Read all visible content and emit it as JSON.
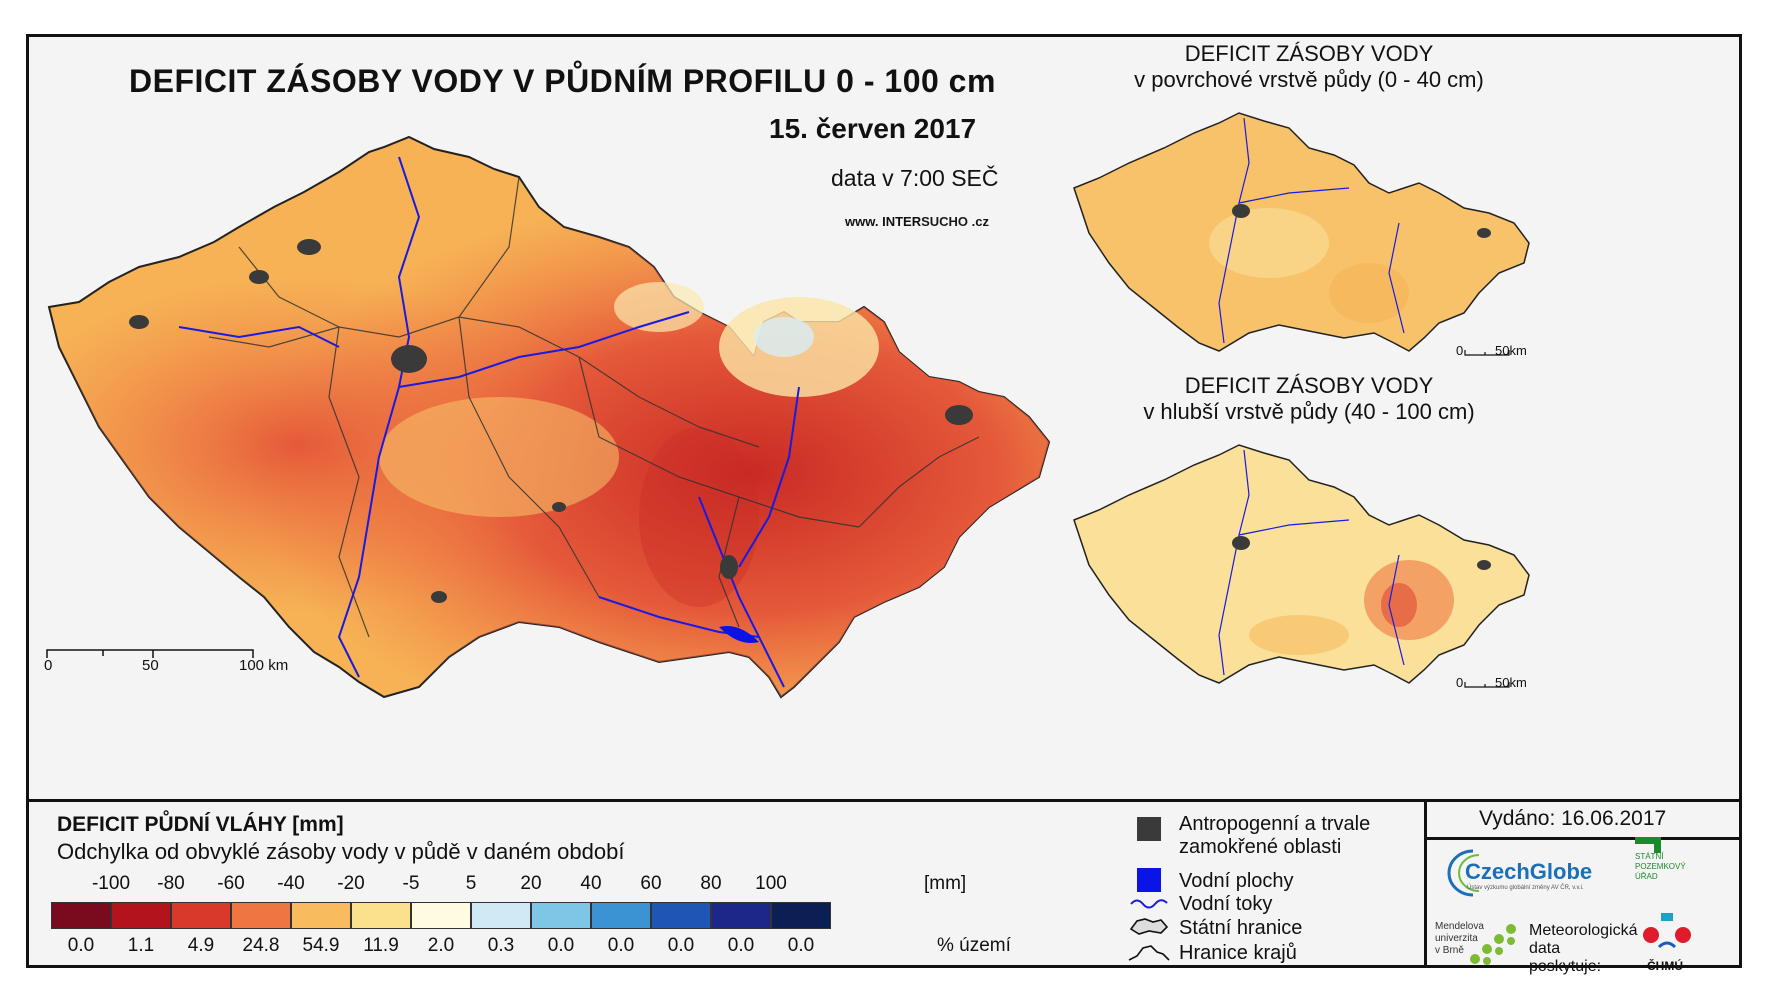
{
  "title": "DEFICIT ZÁSOBY VODY V PŮDNÍM PROFILU 0 - 100 cm",
  "date": "15. červen 2017",
  "data_time": "data v 7:00 SEČ",
  "website": {
    "prefix": "www. INTER",
    "highlight": "SUCHO",
    "suffix": " .cz"
  },
  "main_scale": {
    "ticks": [
      "0",
      "50",
      "100 km"
    ]
  },
  "inset_top": {
    "title_line1": "DEFICIT ZÁSOBY VODY",
    "title_line2": "v povrchové vrstvě půdy (0 - 40 cm)",
    "scale": [
      "0",
      "50km"
    ]
  },
  "inset_bottom": {
    "title_line1": "DEFICIT ZÁSOBY VODY",
    "title_line2": "v hlubší vrstvě půdy (40 - 100 cm)",
    "scale": [
      "0",
      "50km"
    ]
  },
  "legend": {
    "title": "DEFICIT PŮDNÍ VLÁHY [mm]",
    "subtitle": "Odchylka od obvyklé zásoby vody v půdě v daném období",
    "unit_label": "[mm]",
    "pct_label": "% území",
    "boundaries": [
      "-100",
      "-80",
      "-60",
      "-40",
      "-20",
      "-5",
      "5",
      "20",
      "40",
      "60",
      "80",
      "100"
    ],
    "classes": [
      {
        "color": "#7a0a1e",
        "pct": "0.0"
      },
      {
        "color": "#b3141c",
        "pct": "1.1"
      },
      {
        "color": "#d9392b",
        "pct": "4.9"
      },
      {
        "color": "#ef7642",
        "pct": "24.8"
      },
      {
        "color": "#f8bb5e",
        "pct": "54.9"
      },
      {
        "color": "#fbe08e",
        "pct": "11.9"
      },
      {
        "color": "#fffbe0",
        "pct": "2.0"
      },
      {
        "color": "#cfeaf5",
        "pct": "0.3"
      },
      {
        "color": "#7fc6e6",
        "pct": "0.0"
      },
      {
        "color": "#3b93d4",
        "pct": "0.0"
      },
      {
        "color": "#1f56b5",
        "pct": "0.0"
      },
      {
        "color": "#1c2789",
        "pct": "0.0"
      },
      {
        "color": "#0c1f55",
        "pct": "0.0"
      }
    ]
  },
  "key": {
    "anthro_line1": "Antropogenní a trvale",
    "anthro_line2": "zamokřené oblasti",
    "water_bodies": "Vodní plochy",
    "water_streams": "Vodní toky",
    "state_border": "Státní hranice",
    "region_border": "Hranice krajů",
    "colors": {
      "anthro": "#3a3a3a",
      "water": "#0a14e6",
      "stream": "#1a1ae0"
    }
  },
  "issued": "Vydáno: 16.06.2017",
  "logos": {
    "czechglobe": "CzechGlobe",
    "czechglobe_sub": "Ústav výzkumu globální změny AV ČR, v.v.i.",
    "spu": [
      "STÁTNÍ",
      "POZEMKOVÝ",
      "ÚŘAD"
    ],
    "mendel": [
      "Mendelova",
      "univerzita",
      "v Brně"
    ],
    "met_line1": "Meteorologická",
    "met_line2": "data",
    "met_line3": "poskytuje:",
    "chmu": "ČHMÚ"
  }
}
